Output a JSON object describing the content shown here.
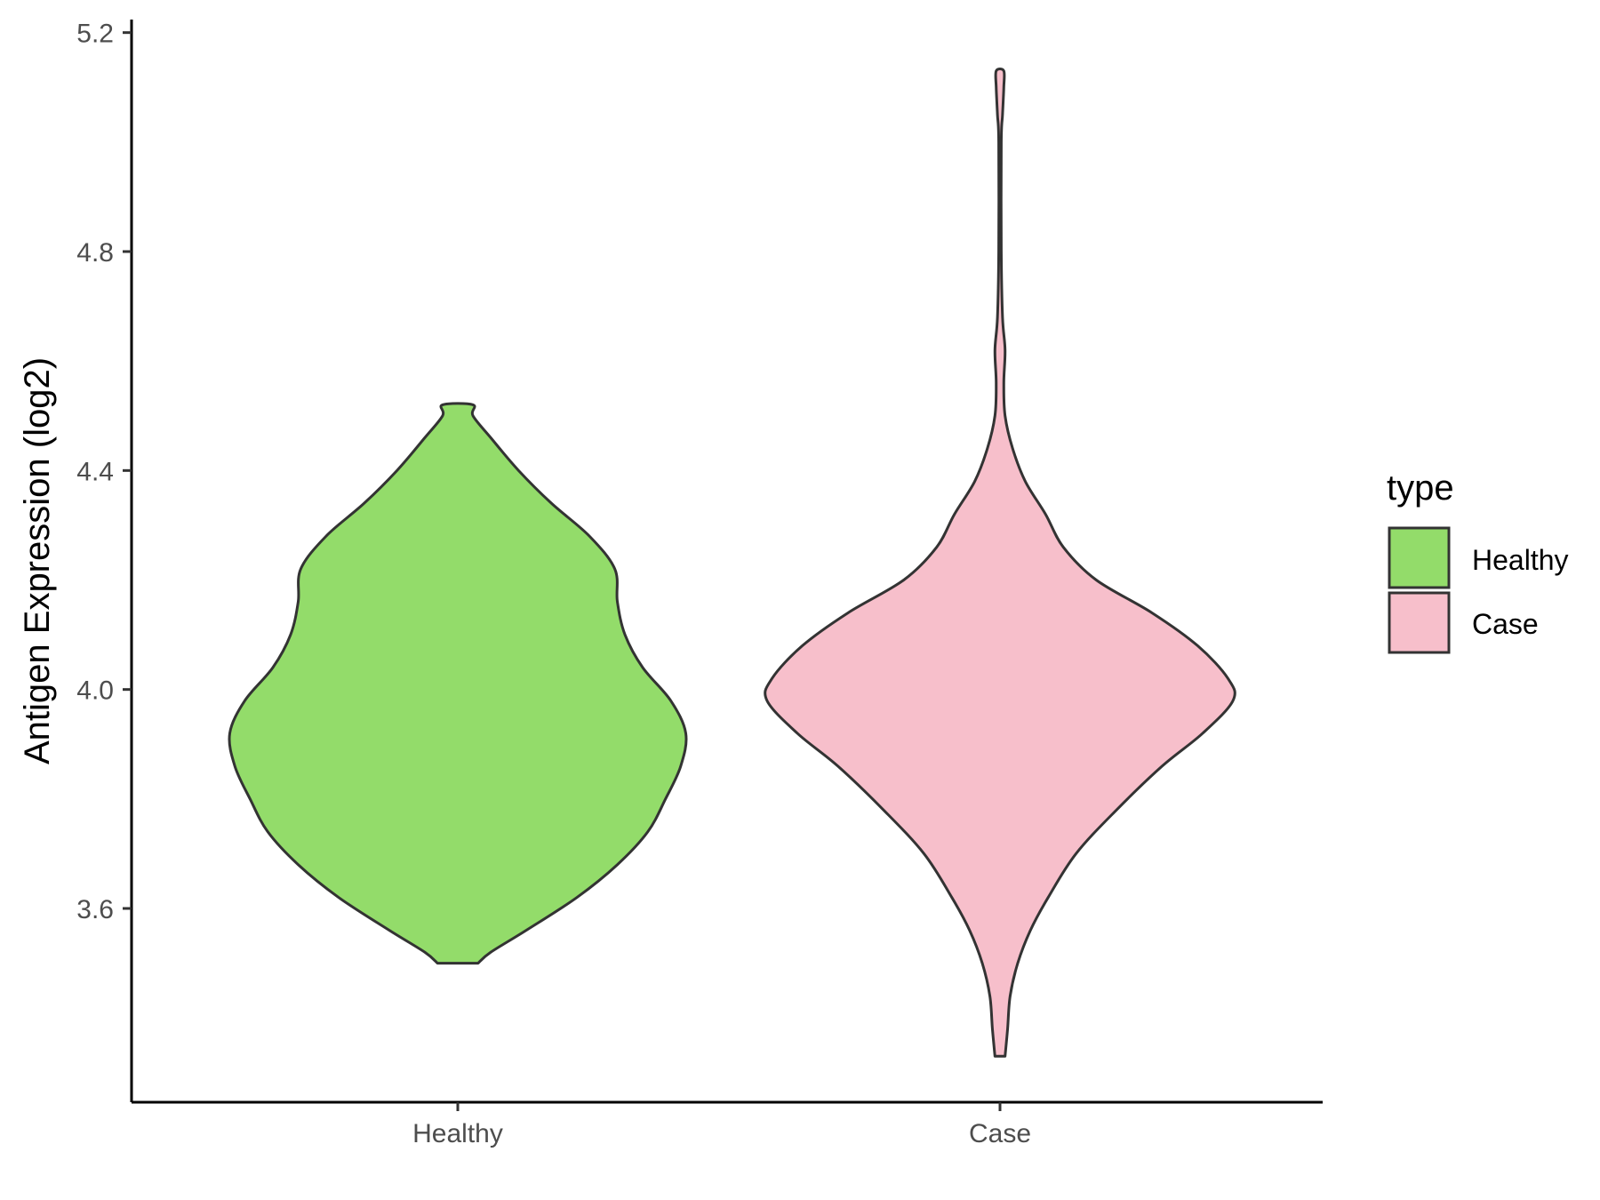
{
  "chart_data": {
    "type": "violin",
    "title": "",
    "xlabel": "",
    "ylabel": "Antigen Expression (log2)",
    "categories": [
      "Healthy",
      "Case"
    ],
    "ylim": [
      3.2,
      5.22
    ],
    "yticks": [
      "3.6",
      "4.0",
      "4.4",
      "4.8",
      "5.2"
    ],
    "ytick_values": [
      3.6,
      4.0,
      4.4,
      4.8,
      5.2
    ],
    "grid": false,
    "legend": {
      "title": "type",
      "position": "right",
      "entries": [
        "Healthy",
        "Case"
      ]
    },
    "series": [
      {
        "category": "Healthy",
        "color": "#93DC6A",
        "min": 3.5,
        "max": 4.52,
        "density_profile": [
          [
            3.5,
            0.08
          ],
          [
            3.52,
            0.13
          ],
          [
            3.56,
            0.27
          ],
          [
            3.62,
            0.47
          ],
          [
            3.68,
            0.63
          ],
          [
            3.74,
            0.75
          ],
          [
            3.8,
            0.82
          ],
          [
            3.86,
            0.88
          ],
          [
            3.92,
            0.9
          ],
          [
            3.98,
            0.84
          ],
          [
            4.04,
            0.73
          ],
          [
            4.1,
            0.66
          ],
          [
            4.16,
            0.63
          ],
          [
            4.22,
            0.62
          ],
          [
            4.28,
            0.52
          ],
          [
            4.34,
            0.37
          ],
          [
            4.4,
            0.24
          ],
          [
            4.46,
            0.13
          ],
          [
            4.5,
            0.06
          ],
          [
            4.52,
            0.06
          ]
        ]
      },
      {
        "category": "Case",
        "color": "#F7BFCB",
        "min": 3.33,
        "max": 5.13,
        "density_profile": [
          [
            3.33,
            0.02
          ],
          [
            3.38,
            0.03
          ],
          [
            3.44,
            0.04
          ],
          [
            3.5,
            0.07
          ],
          [
            3.56,
            0.12
          ],
          [
            3.62,
            0.19
          ],
          [
            3.7,
            0.3
          ],
          [
            3.78,
            0.46
          ],
          [
            3.86,
            0.64
          ],
          [
            3.92,
            0.8
          ],
          [
            3.98,
            0.92
          ],
          [
            4.02,
            0.9
          ],
          [
            4.08,
            0.78
          ],
          [
            4.14,
            0.6
          ],
          [
            4.2,
            0.38
          ],
          [
            4.26,
            0.25
          ],
          [
            4.32,
            0.18
          ],
          [
            4.38,
            0.1
          ],
          [
            4.44,
            0.05
          ],
          [
            4.5,
            0.02
          ],
          [
            4.56,
            0.015
          ],
          [
            4.62,
            0.02
          ],
          [
            4.68,
            0.01
          ],
          [
            4.8,
            0.005
          ],
          [
            5.0,
            0.005
          ],
          [
            5.05,
            0.01
          ],
          [
            5.1,
            0.015
          ],
          [
            5.13,
            0.015
          ]
        ]
      }
    ]
  }
}
